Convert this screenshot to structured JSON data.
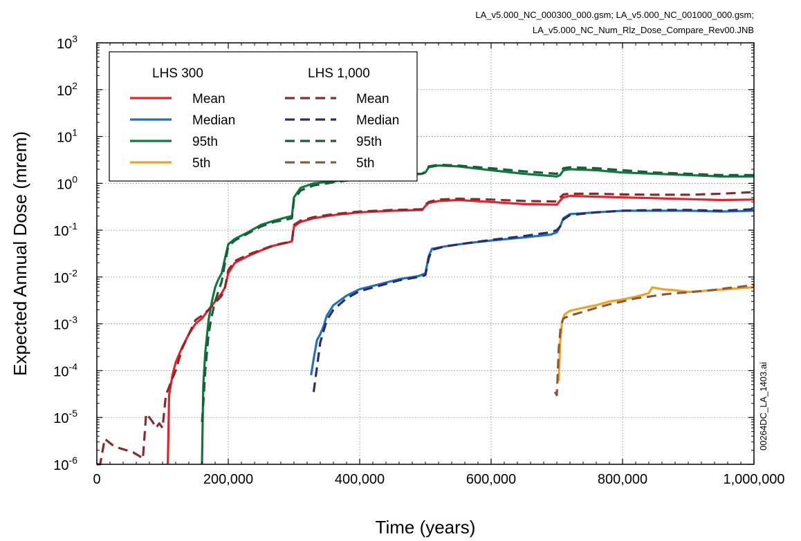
{
  "header": {
    "files_line1": "LA_v5.000_NC_000300_000.gsm; LA_v5.000_NC_001000_000.gsm;",
    "files_line2": "LA_v5.000_NC_Num_Rlz_Dose_Compare_Rev00.JNB"
  },
  "side_label": "00264DC_LA_1403.ai",
  "chart_data": {
    "type": "line",
    "xlabel": "Time (years)",
    "ylabel": "Expected Annual Dose (mrem)",
    "xlim": [
      0,
      1000000
    ],
    "ylim": [
      1e-06,
      1000
    ],
    "yscale": "log",
    "grid": true,
    "legend_position": "top-left",
    "x_ticks": [
      {
        "value": 0,
        "label": "0"
      },
      {
        "value": 200000,
        "label": "200,000"
      },
      {
        "value": 400000,
        "label": "400,000"
      },
      {
        "value": 600000,
        "label": "600,000"
      },
      {
        "value": 800000,
        "label": "800,000"
      },
      {
        "value": 1000000,
        "label": "1,000,000"
      }
    ],
    "y_ticks": [
      {
        "exp": 3,
        "label": "10"
      },
      {
        "exp": 2,
        "label": "10"
      },
      {
        "exp": 1,
        "label": "10"
      },
      {
        "exp": 0,
        "label": "10"
      },
      {
        "exp": -1,
        "label": "10"
      },
      {
        "exp": -2,
        "label": "10"
      },
      {
        "exp": -3,
        "label": "10"
      },
      {
        "exp": -4,
        "label": "10"
      },
      {
        "exp": -5,
        "label": "10"
      },
      {
        "exp": -6,
        "label": "10"
      }
    ],
    "y_tick_exponents": [
      "3",
      "2",
      "1",
      "0",
      "-1",
      "-2",
      "-3",
      "-4",
      "-5",
      "-6"
    ],
    "legend_groups": [
      "LHS 300",
      "LHS 1,000"
    ],
    "series": [
      {
        "name": "Mean",
        "group": "LHS 300",
        "color": "#e8202a",
        "dash": false,
        "x": [
          108000,
          110000,
          115000,
          120000,
          130000,
          140000,
          150000,
          160000,
          170000,
          180000,
          190000,
          195000,
          200000,
          210000,
          230000,
          250000,
          270000,
          290000,
          297000,
          300000,
          310000,
          330000,
          360000,
          400000,
          450000,
          495000,
          500000,
          505000,
          520000,
          550000,
          600000,
          650000,
          700000,
          705000,
          710000,
          720000,
          760000,
          800000,
          850000,
          900000,
          950000,
          1000000
        ],
        "y": [
          1e-06,
          3e-05,
          8e-05,
          0.00015,
          0.00032,
          0.0006,
          0.001,
          0.0013,
          0.002,
          0.003,
          0.0045,
          0.006,
          0.012,
          0.02,
          0.028,
          0.037,
          0.047,
          0.054,
          0.058,
          0.12,
          0.15,
          0.18,
          0.21,
          0.24,
          0.26,
          0.27,
          0.33,
          0.38,
          0.42,
          0.44,
          0.4,
          0.36,
          0.35,
          0.43,
          0.5,
          0.54,
          0.52,
          0.5,
          0.48,
          0.46,
          0.44,
          0.45
        ]
      },
      {
        "name": "Median",
        "group": "LHS 300",
        "color": "#1f73b8",
        "dash": false,
        "x": [
          326000,
          330000,
          335000,
          340000,
          345000,
          350000,
          360000,
          380000,
          400000,
          430000,
          460000,
          490000,
          500000,
          505000,
          510000,
          530000,
          560000,
          600000,
          650000,
          690000,
          700000,
          705000,
          710000,
          720000,
          760000,
          800000,
          850000,
          900000,
          950000,
          1000000
        ],
        "y": [
          8e-05,
          0.00018,
          0.00045,
          0.0006,
          0.0009,
          0.0015,
          0.0025,
          0.004,
          0.0055,
          0.007,
          0.009,
          0.0105,
          0.012,
          0.028,
          0.04,
          0.045,
          0.052,
          0.06,
          0.07,
          0.08,
          0.09,
          0.12,
          0.18,
          0.22,
          0.24,
          0.26,
          0.26,
          0.26,
          0.25,
          0.26
        ]
      },
      {
        "name": "95th",
        "group": "LHS 300",
        "color": "#0d7a40",
        "dash": false,
        "x": [
          160000,
          162000,
          165000,
          170000,
          175000,
          180000,
          185000,
          190000,
          195000,
          200000,
          210000,
          230000,
          250000,
          270000,
          290000,
          297000,
          300000,
          310000,
          330000,
          360000,
          400000,
          450000,
          495000,
          500000,
          505000,
          520000,
          550000,
          600000,
          650000,
          700000,
          705000,
          710000,
          720000,
          760000,
          800000,
          850000,
          900000,
          950000,
          1000000
        ],
        "y": [
          1e-06,
          5e-05,
          0.00025,
          0.0012,
          0.003,
          0.006,
          0.009,
          0.012,
          0.025,
          0.05,
          0.065,
          0.09,
          0.13,
          0.16,
          0.19,
          0.2,
          0.5,
          0.8,
          1.0,
          1.1,
          1.3,
          1.5,
          1.6,
          1.7,
          2.2,
          2.4,
          2.3,
          1.9,
          1.6,
          1.4,
          1.5,
          1.9,
          2.0,
          1.9,
          1.7,
          1.6,
          1.5,
          1.4,
          1.4
        ]
      },
      {
        "name": "5th",
        "group": "LHS 300",
        "color": "#f0a31f",
        "dash": false,
        "x": [
          703000,
          705000,
          708000,
          712000,
          720000,
          740000,
          760000,
          780000,
          800000,
          820000,
          840000,
          845000,
          860000,
          880000,
          900000,
          920000,
          940000,
          960000,
          980000,
          1000000
        ],
        "y": [
          6e-05,
          0.0004,
          0.0011,
          0.0016,
          0.0019,
          0.0022,
          0.0025,
          0.003,
          0.0033,
          0.0038,
          0.0045,
          0.006,
          0.0055,
          0.0052,
          0.0048,
          0.005,
          0.0053,
          0.0055,
          0.0058,
          0.006
        ]
      },
      {
        "name": "Mean",
        "group": "LHS 1,000",
        "color": "#8b2a2e",
        "dash": true,
        "x": [
          0,
          5000,
          12000,
          18000,
          25000,
          35000,
          45000,
          55000,
          65000,
          70000,
          75000,
          80000,
          85000,
          90000,
          95000,
          100000,
          105000,
          110000,
          120000,
          130000,
          140000,
          150000,
          160000,
          170000,
          180000,
          190000,
          195000,
          200000,
          210000,
          230000,
          250000,
          270000,
          290000,
          297000,
          300000,
          310000,
          330000,
          360000,
          400000,
          450000,
          495000,
          500000,
          505000,
          520000,
          550000,
          600000,
          650000,
          700000,
          705000,
          710000,
          720000,
          760000,
          800000,
          850000,
          900000,
          950000,
          1000000
        ],
        "y": [
          1e-06,
          1e-06,
          3.5e-06,
          3e-06,
          2.5e-06,
          2.2e-06,
          2e-06,
          1.8e-06,
          1.5e-06,
          1.3e-06,
          1.2e-05,
          1e-05,
          8e-06,
          6e-06,
          7.5e-06,
          6e-06,
          3e-05,
          4.5e-05,
          0.0001,
          0.0003,
          0.0006,
          0.0012,
          0.0015,
          0.002,
          0.0028,
          0.004,
          0.006,
          0.014,
          0.022,
          0.03,
          0.038,
          0.048,
          0.055,
          0.06,
          0.13,
          0.16,
          0.19,
          0.22,
          0.25,
          0.27,
          0.28,
          0.35,
          0.4,
          0.45,
          0.47,
          0.45,
          0.42,
          0.41,
          0.5,
          0.58,
          0.6,
          0.6,
          0.58,
          0.57,
          0.57,
          0.6,
          0.65
        ]
      },
      {
        "name": "Median",
        "group": "LHS 1,000",
        "color": "#2b2a6e",
        "dash": true,
        "x": [
          330000,
          335000,
          340000,
          345000,
          350000,
          360000,
          380000,
          400000,
          430000,
          460000,
          490000,
          500000,
          505000,
          510000,
          530000,
          560000,
          600000,
          650000,
          690000,
          700000,
          705000,
          710000,
          720000,
          760000,
          800000,
          850000,
          900000,
          950000,
          1000000
        ],
        "y": [
          3.5e-05,
          0.00012,
          0.0004,
          0.0007,
          0.0012,
          0.002,
          0.0035,
          0.005,
          0.0065,
          0.0085,
          0.01,
          0.011,
          0.025,
          0.038,
          0.045,
          0.052,
          0.062,
          0.075,
          0.09,
          0.1,
          0.12,
          0.17,
          0.21,
          0.24,
          0.26,
          0.27,
          0.27,
          0.26,
          0.28
        ]
      },
      {
        "name": "95th",
        "group": "LHS 1,000",
        "color": "#1d5a36",
        "dash": true,
        "x": [
          160000,
          162000,
          165000,
          170000,
          175000,
          180000,
          185000,
          190000,
          195000,
          200000,
          210000,
          230000,
          250000,
          270000,
          290000,
          297000,
          300000,
          310000,
          330000,
          360000,
          400000,
          450000,
          495000,
          500000,
          505000,
          520000,
          550000,
          600000,
          650000,
          700000,
          705000,
          710000,
          720000,
          760000,
          800000,
          850000,
          900000,
          950000,
          1000000
        ],
        "y": [
          8e-06,
          2e-05,
          0.0001,
          0.0006,
          0.0015,
          0.003,
          0.005,
          0.008,
          0.02,
          0.045,
          0.06,
          0.085,
          0.12,
          0.15,
          0.17,
          0.18,
          0.45,
          0.7,
          0.9,
          1.05,
          1.25,
          1.45,
          1.6,
          1.8,
          2.3,
          2.5,
          2.4,
          2.1,
          1.8,
          1.6,
          1.8,
          2.1,
          2.2,
          2.1,
          1.9,
          1.7,
          1.6,
          1.5,
          1.5
        ]
      },
      {
        "name": "5th",
        "group": "LHS 1,000",
        "color": "#8a5a3c",
        "dash": true,
        "x": [
          697000,
          700000,
          703000,
          706000,
          710000,
          720000,
          740000,
          760000,
          780000,
          800000,
          820000,
          840000,
          860000,
          880000,
          900000,
          920000,
          940000,
          960000,
          980000,
          1000000
        ],
        "y": [
          3.5e-05,
          3e-05,
          0.0003,
          0.0009,
          0.0013,
          0.0015,
          0.0018,
          0.0022,
          0.0026,
          0.003,
          0.0035,
          0.0038,
          0.0042,
          0.0045,
          0.0047,
          0.005,
          0.0053,
          0.0058,
          0.0062,
          0.0068
        ]
      }
    ]
  }
}
